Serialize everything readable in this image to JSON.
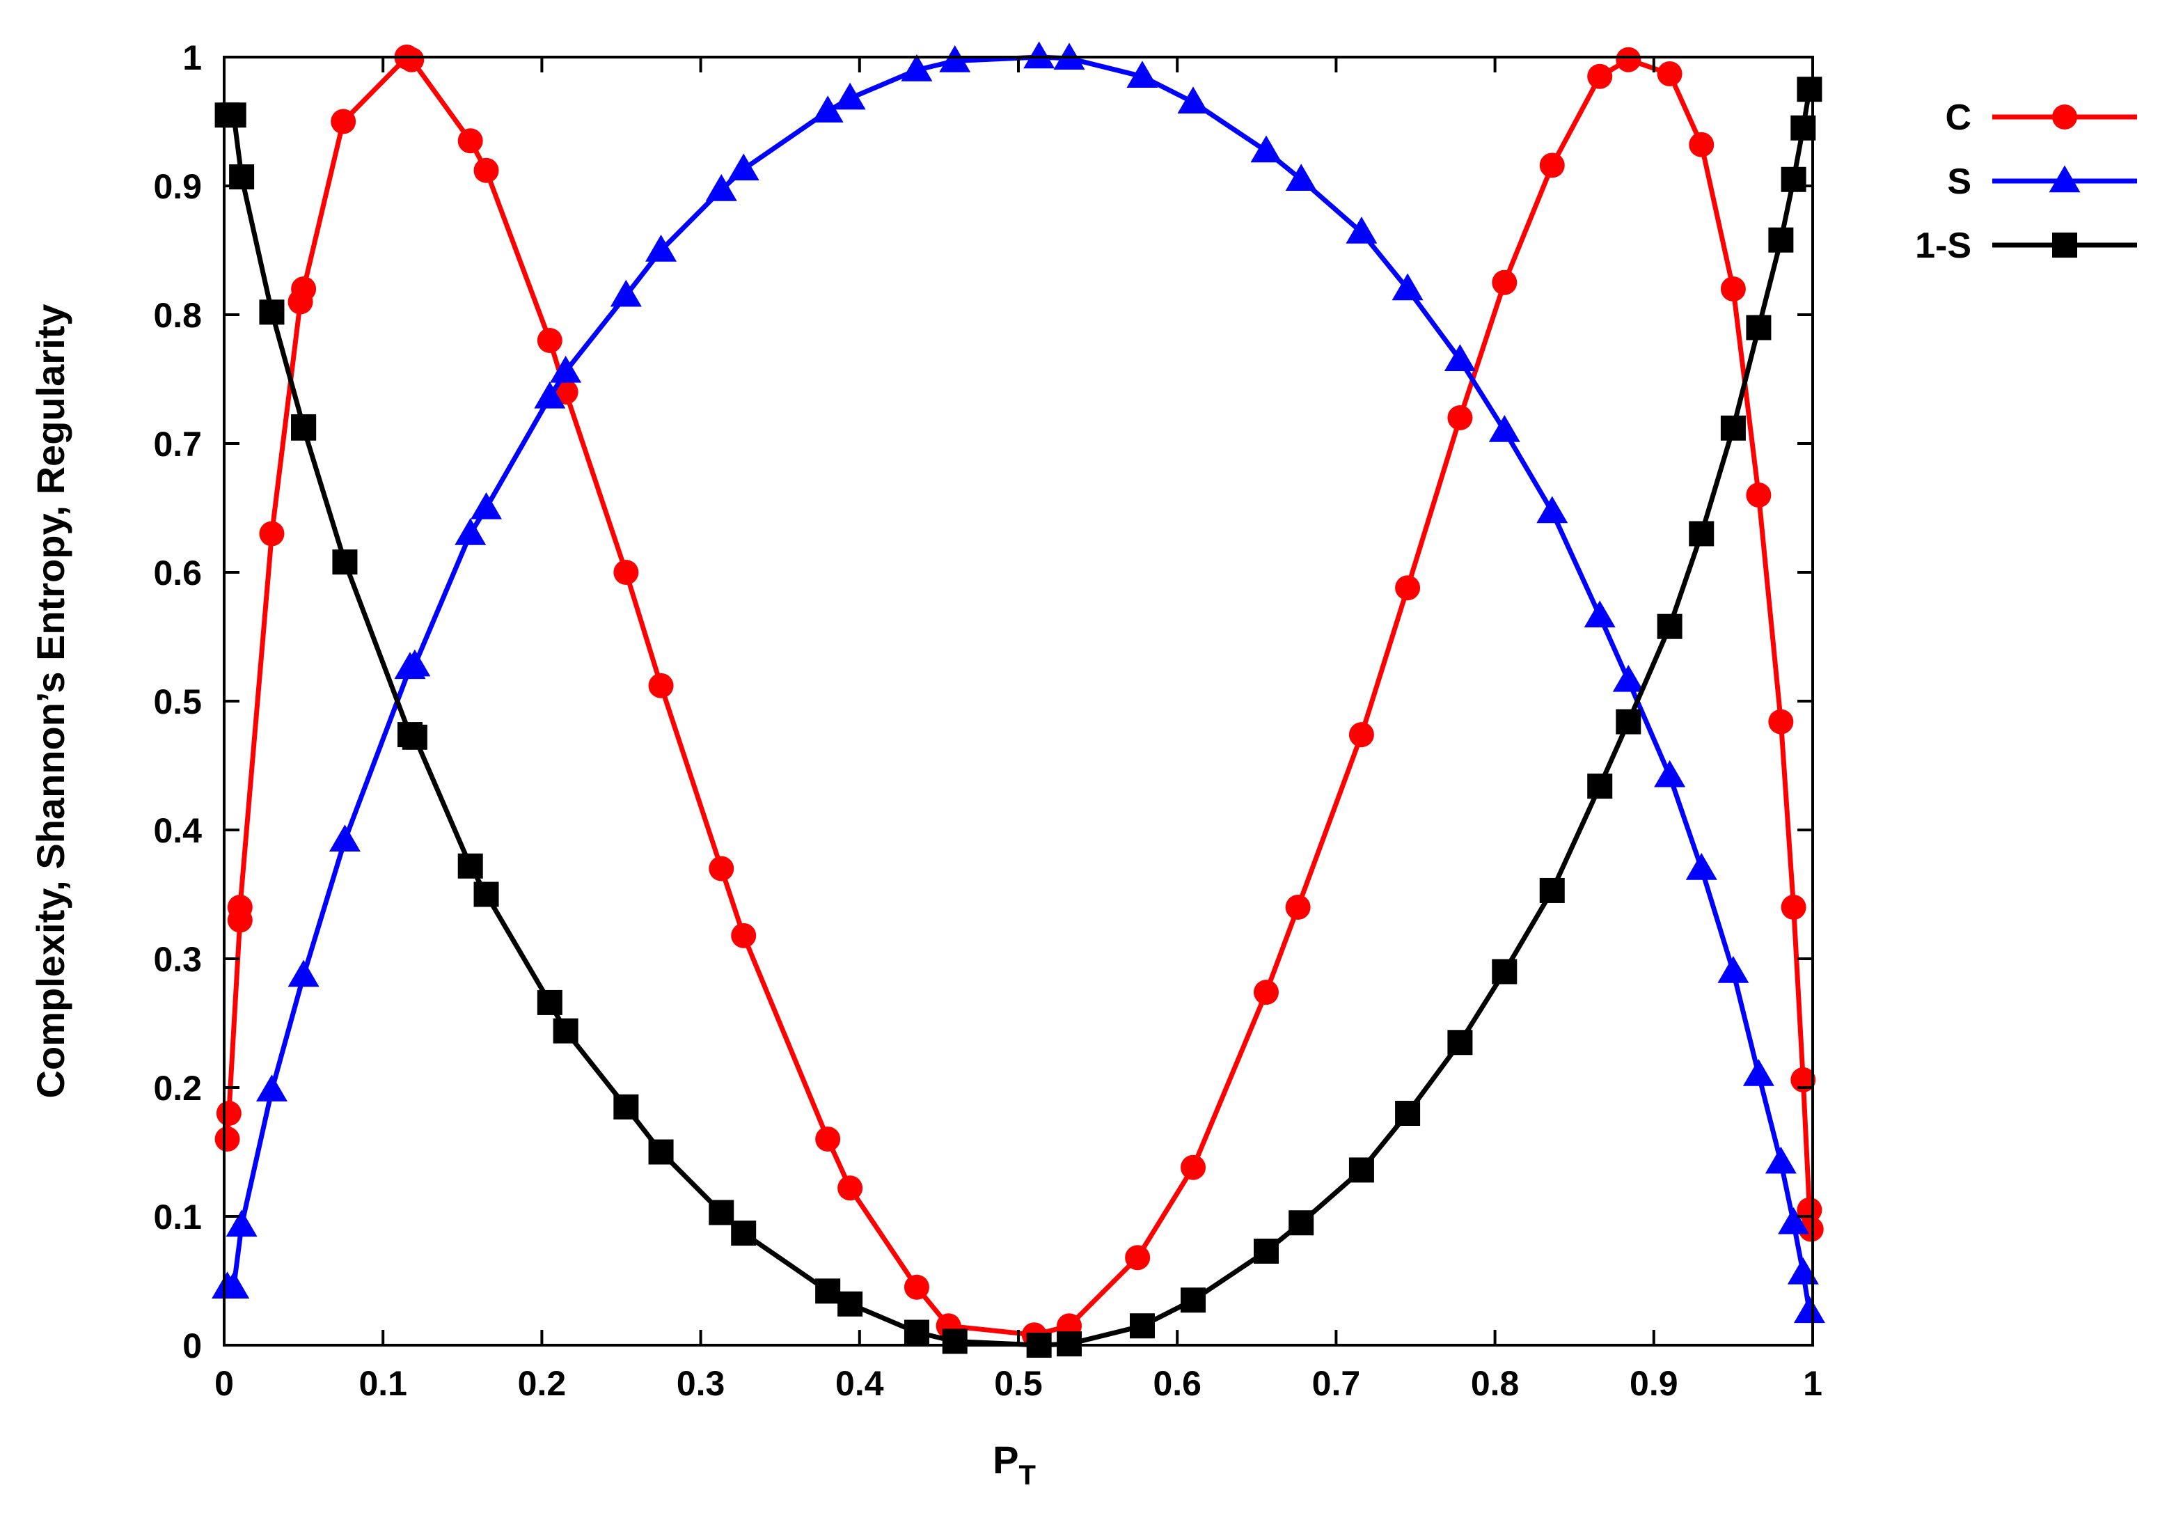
{
  "chart_data": {
    "type": "line",
    "title": "",
    "xlabel": "P",
    "xlabel_subscript": "T",
    "ylabel": "Complexity, Shannon’s Entropy, Regularity",
    "xlim": [
      0,
      1
    ],
    "ylim": [
      0,
      1
    ],
    "xticks": [
      "0",
      "0.1",
      "0.2",
      "0.3",
      "0.4",
      "0.5",
      "0.6",
      "0.7",
      "0.8",
      "0.9",
      "1"
    ],
    "yticks": [
      "0",
      "0.1",
      "0.2",
      "0.3",
      "0.4",
      "0.5",
      "0.6",
      "0.7",
      "0.8",
      "0.9",
      "1"
    ],
    "grid": false,
    "legend_position": "outside-top-right",
    "series": [
      {
        "name": "C",
        "color": "#ff0000",
        "marker": "circle",
        "points": [
          [
            0.002,
            0.16
          ],
          [
            0.003,
            0.18
          ],
          [
            0.01,
            0.33
          ],
          [
            0.01,
            0.34
          ],
          [
            0.03,
            0.63
          ],
          [
            0.048,
            0.81
          ],
          [
            0.05,
            0.82
          ],
          [
            0.075,
            0.95
          ],
          [
            0.115,
            1.0
          ],
          [
            0.118,
            0.998
          ],
          [
            0.155,
            0.935
          ],
          [
            0.165,
            0.912
          ],
          [
            0.205,
            0.78
          ],
          [
            0.215,
            0.74
          ],
          [
            0.253,
            0.6
          ],
          [
            0.275,
            0.512
          ],
          [
            0.313,
            0.37
          ],
          [
            0.327,
            0.318
          ],
          [
            0.38,
            0.16
          ],
          [
            0.394,
            0.122
          ],
          [
            0.436,
            0.045
          ],
          [
            0.456,
            0.015
          ],
          [
            0.51,
            0.008
          ],
          [
            0.532,
            0.015
          ],
          [
            0.575,
            0.068
          ],
          [
            0.61,
            0.138
          ],
          [
            0.656,
            0.274
          ],
          [
            0.676,
            0.34
          ],
          [
            0.716,
            0.474
          ],
          [
            0.745,
            0.588
          ],
          [
            0.778,
            0.72
          ],
          [
            0.806,
            0.825
          ],
          [
            0.836,
            0.916
          ],
          [
            0.866,
            0.985
          ],
          [
            0.884,
            0.998
          ],
          [
            0.91,
            0.987
          ],
          [
            0.93,
            0.932
          ],
          [
            0.95,
            0.82
          ],
          [
            0.966,
            0.66
          ],
          [
            0.98,
            0.484
          ],
          [
            0.988,
            0.34
          ],
          [
            0.994,
            0.206
          ],
          [
            0.998,
            0.105
          ],
          [
            0.999,
            0.09
          ]
        ]
      },
      {
        "name": "S",
        "color": "#0000ff",
        "marker": "triangle",
        "points": [
          [
            0.002,
            0.045
          ],
          [
            0.006,
            0.045
          ],
          [
            0.011,
            0.093
          ],
          [
            0.03,
            0.198
          ],
          [
            0.05,
            0.287
          ],
          [
            0.076,
            0.392
          ],
          [
            0.117,
            0.526
          ],
          [
            0.12,
            0.528
          ],
          [
            0.155,
            0.63
          ],
          [
            0.165,
            0.65
          ],
          [
            0.205,
            0.736
          ],
          [
            0.215,
            0.756
          ],
          [
            0.253,
            0.815
          ],
          [
            0.275,
            0.85
          ],
          [
            0.313,
            0.897
          ],
          [
            0.327,
            0.913
          ],
          [
            0.38,
            0.958
          ],
          [
            0.394,
            0.968
          ],
          [
            0.436,
            0.99
          ],
          [
            0.46,
            0.997
          ],
          [
            0.513,
            1.0
          ],
          [
            0.532,
            0.999
          ],
          [
            0.578,
            0.985
          ],
          [
            0.61,
            0.965
          ],
          [
            0.656,
            0.927
          ],
          [
            0.678,
            0.905
          ],
          [
            0.716,
            0.864
          ],
          [
            0.745,
            0.82
          ],
          [
            0.778,
            0.765
          ],
          [
            0.806,
            0.71
          ],
          [
            0.836,
            0.647
          ],
          [
            0.866,
            0.566
          ],
          [
            0.884,
            0.516
          ],
          [
            0.91,
            0.442
          ],
          [
            0.93,
            0.37
          ],
          [
            0.95,
            0.29
          ],
          [
            0.966,
            0.21
          ],
          [
            0.98,
            0.142
          ],
          [
            0.988,
            0.095
          ],
          [
            0.994,
            0.056
          ],
          [
            0.998,
            0.026
          ]
        ]
      },
      {
        "name": "1-S",
        "color": "#000000",
        "marker": "square",
        "points": [
          [
            0.002,
            0.955
          ],
          [
            0.006,
            0.955
          ],
          [
            0.011,
            0.907
          ],
          [
            0.03,
            0.802
          ],
          [
            0.05,
            0.713
          ],
          [
            0.05,
            0.712
          ],
          [
            0.076,
            0.608
          ],
          [
            0.117,
            0.474
          ],
          [
            0.12,
            0.472
          ],
          [
            0.155,
            0.372
          ],
          [
            0.165,
            0.35
          ],
          [
            0.205,
            0.266
          ],
          [
            0.215,
            0.244
          ],
          [
            0.253,
            0.185
          ],
          [
            0.275,
            0.15
          ],
          [
            0.313,
            0.103
          ],
          [
            0.327,
            0.087
          ],
          [
            0.38,
            0.042
          ],
          [
            0.394,
            0.032
          ],
          [
            0.436,
            0.01
          ],
          [
            0.46,
            0.003
          ],
          [
            0.513,
            0.0
          ],
          [
            0.532,
            0.001
          ],
          [
            0.578,
            0.015
          ],
          [
            0.61,
            0.035
          ],
          [
            0.656,
            0.073
          ],
          [
            0.678,
            0.095
          ],
          [
            0.716,
            0.136
          ],
          [
            0.745,
            0.18
          ],
          [
            0.778,
            0.235
          ],
          [
            0.806,
            0.29
          ],
          [
            0.836,
            0.353
          ],
          [
            0.866,
            0.434
          ],
          [
            0.884,
            0.484
          ],
          [
            0.91,
            0.558
          ],
          [
            0.93,
            0.63
          ],
          [
            0.95,
            0.712
          ],
          [
            0.966,
            0.79
          ],
          [
            0.98,
            0.858
          ],
          [
            0.988,
            0.905
          ],
          [
            0.994,
            0.945
          ],
          [
            0.998,
            0.975
          ]
        ]
      }
    ]
  }
}
